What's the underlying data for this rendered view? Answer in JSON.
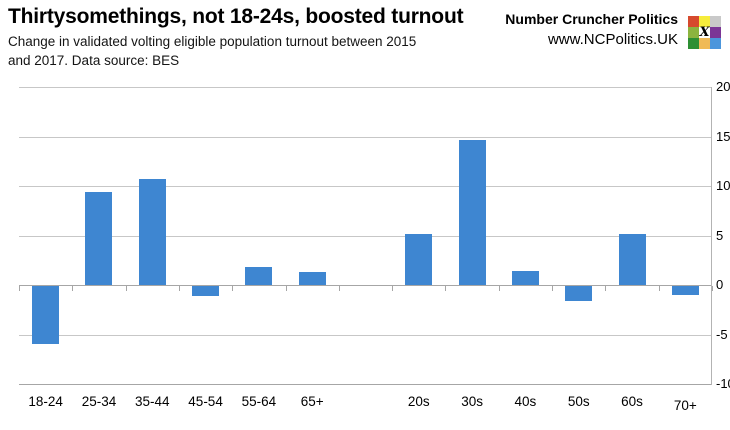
{
  "header": {
    "title": "Thirtysomethings, not 18-24s, boosted turnout",
    "subtitle_lines": [
      "Change in validated volting eligible population turnout between 2015",
      "and 2017. Data source: BES"
    ]
  },
  "brand": {
    "name": "Number Cruncher Politics",
    "url": "www.NCPolitics.UK",
    "logo_cells": [
      {
        "color": "#d64a2e"
      },
      {
        "color": "#f6ec3b"
      },
      {
        "color": "#c9c9c9"
      },
      {
        "color": "#8cb43f"
      },
      {
        "color": "#ffffff",
        "label": "X"
      },
      {
        "color": "#7b3596"
      },
      {
        "color": "#2e8f33"
      },
      {
        "color": "#f0ba57"
      },
      {
        "color": "#4b96dc"
      }
    ]
  },
  "chart_data": {
    "type": "bar",
    "title": "Thirtysomethings, not 18-24s, boosted turnout",
    "xlabel": "",
    "ylabel": "",
    "ylim": [
      -10,
      20
    ],
    "y_tick_step": 5,
    "y_tick_labels": [
      "20",
      "15",
      "10",
      "5",
      "0",
      "-5",
      "-10"
    ],
    "grid": true,
    "legend": false,
    "y_axis_side": "right",
    "bar_color": "#3e86d1",
    "gridline_color": "#c7c7c7",
    "axis_color": "#a6a6a6",
    "groups": [
      {
        "categories": [
          "18-24",
          "25-34",
          "35-44",
          "45-54",
          "55-64",
          "65+"
        ],
        "values": [
          -5.9,
          9.4,
          10.7,
          -1.0,
          1.8,
          1.3
        ]
      },
      {
        "categories": [
          "20s",
          "30s",
          "40s",
          "50s",
          "60s",
          "70+"
        ],
        "values": [
          5.2,
          14.6,
          1.4,
          -1.5,
          5.2,
          -0.9
        ]
      }
    ],
    "gap_slots_between_groups": 1,
    "x_label_offsets": {
      "70+": 4
    }
  }
}
